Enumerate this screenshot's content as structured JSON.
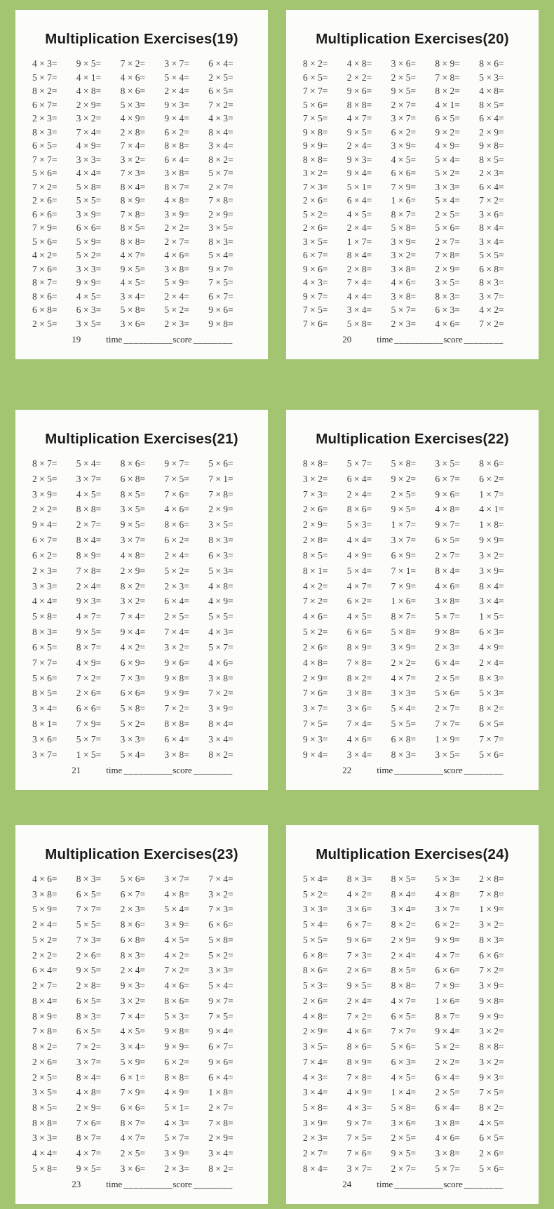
{
  "colors": {
    "background_green": "#a3c572",
    "sheet_white": "#fcfcfa",
    "text_dark": "#1b1b1b",
    "problem_text": "#3c3c3c"
  },
  "footer": {
    "time_label": "time",
    "time_blank": "__________",
    "score_label": "score",
    "score_blank": "________"
  },
  "panels": [
    {
      "title": "Multiplication Exercises(19)",
      "page_no": "19",
      "rows": [
        [
          "4 × 3=",
          "9 × 5=",
          "7 × 2=",
          "3 × 7=",
          "6 × 4="
        ],
        [
          "5 × 7=",
          "4 × 1=",
          "4 × 6=",
          "5 × 4=",
          "2 × 5="
        ],
        [
          "8 × 2=",
          "4 × 8=",
          "8 × 6=",
          "2 × 4=",
          "6 × 5="
        ],
        [
          "6 × 7=",
          "2 × 9=",
          "5 × 3=",
          "9 × 3=",
          "7 × 2="
        ],
        [
          "2 × 3=",
          "3 × 2=",
          "4 × 9=",
          "9 × 4=",
          "4 × 3="
        ],
        [
          "8 × 3=",
          "7 × 4=",
          "2 × 8=",
          "6 × 2=",
          "8 × 4="
        ],
        [
          "6 × 5=",
          "4 × 9=",
          "7 × 4=",
          "8 × 8=",
          "3 × 4="
        ],
        [
          "7 × 7=",
          "3 × 3=",
          "3 × 2=",
          "6 × 4=",
          "8 × 2="
        ],
        [
          "5 × 6=",
          "4 × 4=",
          "7 × 3=",
          "3 × 8=",
          "5 × 7="
        ],
        [
          "7 × 2=",
          "5 × 8=",
          "8 × 4=",
          "8 × 7=",
          "2 × 7="
        ],
        [
          "2 × 6=",
          "5 × 5=",
          "8 × 9=",
          "4 × 8=",
          "7 × 8="
        ],
        [
          "6 × 6=",
          "3 × 9=",
          "7 × 8=",
          "3 × 9=",
          "2 × 9="
        ],
        [
          "7 × 9=",
          "6 × 6=",
          "8 × 5=",
          "2 × 2=",
          "3 × 5="
        ],
        [
          "5 × 6=",
          "5 × 9=",
          "8 × 8=",
          "2 × 7=",
          "8 × 3="
        ],
        [
          "4 × 2=",
          "5 × 2=",
          "4 × 7=",
          "4 × 6=",
          "5 × 4="
        ],
        [
          "7 × 6=",
          "3 × 3=",
          "9 × 5=",
          "3 × 8=",
          "9 × 7="
        ],
        [
          "8 × 7=",
          "9 × 9=",
          "4 × 5=",
          "5 × 9=",
          "7 × 5="
        ],
        [
          "8 × 6=",
          "4 × 5=",
          "3 × 4=",
          "2 × 4=",
          "6 × 7="
        ],
        [
          "6 × 8=",
          "6 × 3=",
          "5 × 8=",
          "5 × 2=",
          "9 × 6="
        ],
        [
          "2 × 5=",
          "3 × 5=",
          "3 × 6=",
          "2 × 3=",
          "9 × 8="
        ]
      ]
    },
    {
      "title": "Multiplication Exercises(20)",
      "page_no": "20",
      "rows": [
        [
          "8 × 2=",
          "4 × 8=",
          "3 × 6=",
          "8 × 9=",
          "8 × 6="
        ],
        [
          "6 × 5=",
          "2 × 2=",
          "2 × 5=",
          "7 × 8=",
          "5 × 3="
        ],
        [
          "7 × 7=",
          "9 × 6=",
          "9 × 5=",
          "8 × 2=",
          "4 × 8="
        ],
        [
          "5 × 6=",
          "8 × 8=",
          "2 × 7=",
          "4 × 1=",
          "8 × 5="
        ],
        [
          "7 × 5=",
          "4 × 7=",
          "3 × 7=",
          "6 × 5=",
          "6 × 4="
        ],
        [
          "9 × 8=",
          "9 × 5=",
          "6 × 2=",
          "9 × 2=",
          "2 × 9="
        ],
        [
          "9 × 9=",
          "2 × 4=",
          "3 × 9=",
          "4 × 9=",
          "9 × 8="
        ],
        [
          "8 × 8=",
          "9 × 3=",
          "4 × 5=",
          "5 × 4=",
          "8 × 5="
        ],
        [
          "3 × 2=",
          "9 × 4=",
          "6 × 6=",
          "5 × 2=",
          "2 × 3="
        ],
        [
          "7 × 3=",
          "5 × 1=",
          "7 × 9=",
          "3 × 3=",
          "6 × 4="
        ],
        [
          "2 × 6=",
          "6 × 4=",
          "1 × 6=",
          "5 × 4=",
          "7 × 2="
        ],
        [
          "5 × 2=",
          "4 × 5=",
          "8 × 7=",
          "2 × 5=",
          "3 × 6="
        ],
        [
          "2 × 6=",
          "2 × 4=",
          "5 × 8=",
          "5 × 6=",
          "8 × 4="
        ],
        [
          "3 × 5=",
          "1 × 7=",
          "3 × 9=",
          "2 × 7=",
          "3 × 4="
        ],
        [
          "6 × 7=",
          "8 × 4=",
          "3 × 2=",
          "7 × 8=",
          "5 × 5="
        ],
        [
          "9 × 6=",
          "2 × 8=",
          "3 × 8=",
          "2 × 9=",
          "6 × 8="
        ],
        [
          "4 × 3=",
          "7 × 4=",
          "4 × 6=",
          "3 × 5=",
          "8 × 3="
        ],
        [
          "9 × 7=",
          "4 × 4=",
          "3 × 8=",
          "8 × 3=",
          "3 × 7="
        ],
        [
          "7 × 5=",
          "3 × 4=",
          "5 × 7=",
          "6 × 3=",
          "4 × 2="
        ],
        [
          "7 × 6=",
          "5 × 8=",
          "2 × 3=",
          "4 × 6=",
          "7 × 2="
        ]
      ]
    },
    {
      "title": "Multiplication Exercises(21)",
      "page_no": "21",
      "rows": [
        [
          "8 × 7=",
          "5 × 4=",
          "8 × 6=",
          "9 × 7=",
          "5 × 6="
        ],
        [
          "2 × 5=",
          "3 × 7=",
          "6 × 8=",
          "7 × 5=",
          "7 × 1="
        ],
        [
          "3 × 9=",
          "4 × 5=",
          "8 × 5=",
          "7 × 6=",
          "7 × 8="
        ],
        [
          "2 × 2=",
          "8 × 8=",
          "3 × 5=",
          "4 × 6=",
          "2 × 9="
        ],
        [
          "9 × 4=",
          "2 × 7=",
          "9 × 5=",
          "8 × 6=",
          "3 × 5="
        ],
        [
          "6 × 7=",
          "8 × 4=",
          "3 × 7=",
          "6 × 2=",
          "8 × 3="
        ],
        [
          "6 × 2=",
          "8 × 9=",
          "4 × 8=",
          "2 × 4=",
          "6 × 3="
        ],
        [
          "2 × 3=",
          "7 × 8=",
          "2 × 9=",
          "5 × 2=",
          "5 × 3="
        ],
        [
          "3 × 3=",
          "2 × 4=",
          "8 × 2=",
          "2 × 3=",
          "4 × 8="
        ],
        [
          "4 × 4=",
          "9 × 3=",
          "3 × 2=",
          "6 × 4=",
          "4 × 9="
        ],
        [
          "5 × 8=",
          "4 × 7=",
          "7 × 4=",
          "2 × 5=",
          "5 × 5="
        ],
        [
          "8 × 3=",
          "9 × 5=",
          "9 × 4=",
          "7 × 4=",
          "4 × 3="
        ],
        [
          "6 × 5=",
          "8 × 7=",
          "4 × 2=",
          "3 × 2=",
          "5 × 7="
        ],
        [
          "7 × 7=",
          "4 × 9=",
          "6 × 9=",
          "9 × 6=",
          "4 × 6="
        ],
        [
          "5 × 6=",
          "7 × 2=",
          "7 × 3=",
          "9 × 8=",
          "3 × 8="
        ],
        [
          "8 × 5=",
          "2 × 6=",
          "6 × 6=",
          "9 × 9=",
          "7 × 2="
        ],
        [
          "3 × 4=",
          "6 × 6=",
          "5 × 8=",
          "7 × 2=",
          "3 × 9="
        ],
        [
          "8 × 1=",
          "7 × 9=",
          "5 × 2=",
          "8 × 8=",
          "8 × 4="
        ],
        [
          "3 × 6=",
          "5 × 7=",
          "3 × 3=",
          "6 × 4=",
          "3 × 4="
        ],
        [
          "3 × 7=",
          "1 × 5=",
          "5 × 4=",
          "3 × 8=",
          "8 × 2="
        ]
      ]
    },
    {
      "title": "Multiplication Exercises(22)",
      "page_no": "22",
      "rows": [
        [
          "8 × 8=",
          "5 × 7=",
          "5 × 8=",
          "3 × 5=",
          "8 × 6="
        ],
        [
          "3 × 2=",
          "6 × 4=",
          "9 × 2=",
          "6 × 7=",
          "6 × 2="
        ],
        [
          "7 × 3=",
          "2 × 4=",
          "2 × 5=",
          "9 × 6=",
          "1 × 7="
        ],
        [
          "2 × 6=",
          "8 × 6=",
          "9 × 5=",
          "4 × 8=",
          "4 × 1="
        ],
        [
          "2 × 9=",
          "5 × 3=",
          "1 × 7=",
          "9 × 7=",
          "1 × 8="
        ],
        [
          "2 × 8=",
          "4 × 4=",
          "3 × 7=",
          "6 × 5=",
          "9 × 9="
        ],
        [
          "8 × 5=",
          "4 × 9=",
          "6 × 9=",
          "2 × 7=",
          "3 × 2="
        ],
        [
          "8 × 1=",
          "5 × 4=",
          "7 × 1=",
          "8 × 4=",
          "3 × 9="
        ],
        [
          "4 × 2=",
          "4 × 7=",
          "7 × 9=",
          "4 × 6=",
          "8 × 4="
        ],
        [
          "7 × 2=",
          "6 × 2=",
          "1 × 6=",
          "3 × 8=",
          "3 × 4="
        ],
        [
          "4 × 6=",
          "4 × 5=",
          "8 × 7=",
          "5 × 7=",
          "1 × 5="
        ],
        [
          "5 × 2=",
          "6 × 6=",
          "5 × 8=",
          "9 × 8=",
          "6 × 3="
        ],
        [
          "2 × 6=",
          "8 × 9=",
          "3 × 9=",
          "2 × 3=",
          "4 × 9="
        ],
        [
          "4 × 8=",
          "7 × 8=",
          "2 × 2=",
          "6 × 4=",
          "2 × 4="
        ],
        [
          "2 × 9=",
          "8 × 2=",
          "4 × 7=",
          "2 × 5=",
          "8 × 3="
        ],
        [
          "7 × 6=",
          "3 × 8=",
          "3 × 3=",
          "5 × 6=",
          "5 × 3="
        ],
        [
          "3 × 7=",
          "3 × 6=",
          "5 × 4=",
          "2 × 7=",
          "8 × 2="
        ],
        [
          "7 × 5=",
          "7 × 4=",
          "5 × 5=",
          "7 × 7=",
          "6 × 5="
        ],
        [
          "9 × 3=",
          "4 × 6=",
          "6 × 8=",
          "1 × 9=",
          "7 × 7="
        ],
        [
          "9 × 4=",
          "3 × 4=",
          "8 × 3=",
          "3 × 5=",
          "5 × 6="
        ]
      ]
    },
    {
      "title": "Multiplication Exercises(23)",
      "page_no": "23",
      "rows": [
        [
          "4 × 6=",
          "8 × 3=",
          "5 × 6=",
          "3 × 7=",
          "7 × 4="
        ],
        [
          "3 × 8=",
          "6 × 5=",
          "6 × 7=",
          "4 × 8=",
          "3 × 2="
        ],
        [
          "5 × 9=",
          "7 × 7=",
          "2 × 3=",
          "5 × 4=",
          "7 × 3="
        ],
        [
          "2 × 4=",
          "5 × 5=",
          "8 × 6=",
          "3 × 9=",
          "6 × 6="
        ],
        [
          "5 × 2=",
          "7 × 3=",
          "6 × 8=",
          "4 × 5=",
          "5 × 8="
        ],
        [
          "2 × 2=",
          "2 × 6=",
          "8 × 3=",
          "4 × 2=",
          "5 × 2="
        ],
        [
          "6 × 4=",
          "9 × 5=",
          "2 × 4=",
          "7 × 2=",
          "3 × 3="
        ],
        [
          "2 × 7=",
          "2 × 8=",
          "9 × 3=",
          "4 × 6=",
          "5 × 4="
        ],
        [
          "8 × 4=",
          "6 × 5=",
          "3 × 2=",
          "8 × 6=",
          "9 × 7="
        ],
        [
          "8 × 9=",
          "8 × 3=",
          "7 × 4=",
          "5 × 3=",
          "7 × 5="
        ],
        [
          "7 × 8=",
          "6 × 5=",
          "4 × 5=",
          "9 × 8=",
          "9 × 4="
        ],
        [
          "8 × 2=",
          "7 × 2=",
          "3 × 4=",
          "9 × 9=",
          "6 × 7="
        ],
        [
          "2 × 6=",
          "3 × 7=",
          "5 × 9=",
          "6 × 2=",
          "9 × 6="
        ],
        [
          "2 × 5=",
          "8 × 4=",
          "6 × 1=",
          "8 × 8=",
          "6 × 4="
        ],
        [
          "3 × 5=",
          "4 × 8=",
          "7 × 9=",
          "4 × 9=",
          "1 × 8="
        ],
        [
          "8 × 5=",
          "2 × 9=",
          "6 × 6=",
          "5 × 1=",
          "2 × 7="
        ],
        [
          "8 × 8=",
          "7 × 6=",
          "8 × 7=",
          "4 × 3=",
          "7 × 8="
        ],
        [
          "3 × 3=",
          "8 × 7=",
          "4 × 7=",
          "5 × 7=",
          "2 × 9="
        ],
        [
          "4 × 4=",
          "4 × 7=",
          "2 × 5=",
          "3 × 9=",
          "3 × 4="
        ],
        [
          "5 × 8=",
          "9 × 5=",
          "3 × 6=",
          "2 × 3=",
          "8 × 2="
        ]
      ]
    },
    {
      "title": "Multiplication Exercises(24)",
      "page_no": "24",
      "rows": [
        [
          "5 × 4=",
          "8 × 3=",
          "8 × 5=",
          "5 × 3=",
          "2 × 8="
        ],
        [
          "5 × 2=",
          "4 × 2=",
          "8 × 4=",
          "4 × 8=",
          "7 × 8="
        ],
        [
          "3 × 3=",
          "3 × 6=",
          "3 × 4=",
          "3 × 7=",
          "1 × 9="
        ],
        [
          "5 × 4=",
          "6 × 7=",
          "8 × 2=",
          "6 × 2=",
          "3 × 2="
        ],
        [
          "5 × 5=",
          "9 × 6=",
          "2 × 9=",
          "9 × 9=",
          "8 × 3="
        ],
        [
          "6 × 8=",
          "7 × 3=",
          "2 × 4=",
          "4 × 7=",
          "6 × 6="
        ],
        [
          "8 × 6=",
          "2 × 6=",
          "8 × 5=",
          "6 × 6=",
          "7 × 2="
        ],
        [
          "5 × 3=",
          "9 × 5=",
          "8 × 8=",
          "7 × 9=",
          "3 × 9="
        ],
        [
          "2 × 6=",
          "2 × 4=",
          "4 × 7=",
          "1 × 6=",
          "9 × 8="
        ],
        [
          "4 × 8=",
          "7 × 2=",
          "6 × 5=",
          "8 × 7=",
          "9 × 9="
        ],
        [
          "2 × 9=",
          "4 × 6=",
          "7 × 7=",
          "9 × 4=",
          "3 × 2="
        ],
        [
          "3 × 5=",
          "8 × 6=",
          "5 × 6=",
          "5 × 2=",
          "8 × 8="
        ],
        [
          "7 × 4=",
          "8 × 9=",
          "6 × 3=",
          "2 × 2=",
          "3 × 2="
        ],
        [
          "4 × 3=",
          "7 × 8=",
          "4 × 5=",
          "6 × 4=",
          "9 × 3="
        ],
        [
          "3 × 4=",
          "4 × 9=",
          "1 × 4=",
          "2 × 5=",
          "7 × 5="
        ],
        [
          "5 × 8=",
          "4 × 3=",
          "5 × 8=",
          "6 × 4=",
          "8 × 2="
        ],
        [
          "3 × 9=",
          "9 × 7=",
          "3 × 6=",
          "3 × 8=",
          "4 × 5="
        ],
        [
          "2 × 3=",
          "7 × 5=",
          "2 × 5=",
          "4 × 6=",
          "6 × 5="
        ],
        [
          "2 × 7=",
          "7 × 6=",
          "9 × 5=",
          "3 × 8=",
          "2 × 6="
        ],
        [
          "8 × 4=",
          "3 × 7=",
          "2 × 7=",
          "5 × 7=",
          "5 × 6="
        ]
      ]
    }
  ]
}
